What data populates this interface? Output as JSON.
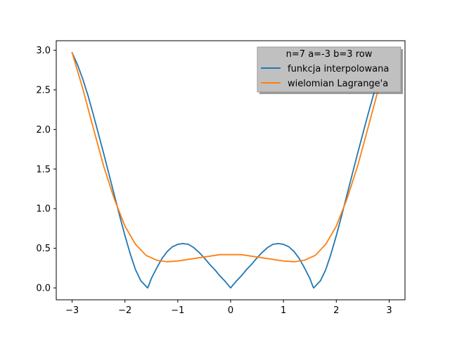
{
  "chart_data": {
    "type": "line",
    "title": "",
    "xlabel": "",
    "ylabel": "",
    "xlim": [
      -3.3,
      3.3
    ],
    "ylim": [
      -0.15,
      3.12
    ],
    "xticks": [
      -3,
      -2,
      -1,
      0,
      1,
      2,
      3
    ],
    "xtick_labels": [
      "−3",
      "−2",
      "−1",
      "0",
      "1",
      "2",
      "3"
    ],
    "yticks": [
      0.0,
      0.5,
      1.0,
      1.5,
      2.0,
      2.5,
      3.0
    ],
    "ytick_labels": [
      "0.0",
      "0.5",
      "1.0",
      "1.5",
      "2.0",
      "2.5",
      "3.0"
    ],
    "grid": false,
    "legend": {
      "title": "n=7 a=-3 b=3 row",
      "placement": "top-right",
      "background": "#c0c0c0"
    },
    "series": [
      {
        "name": "funkcja interpolowana",
        "color": "#1f77b4",
        "x": [
          -3.0,
          -2.9,
          -2.8,
          -2.7,
          -2.6,
          -2.5,
          -2.4,
          -2.3,
          -2.2,
          -2.1,
          -2.0,
          -1.9,
          -1.8,
          -1.7,
          -1.6,
          -1.571,
          -1.55,
          -1.5,
          -1.4,
          -1.3,
          -1.2,
          -1.1,
          -1.0,
          -0.9,
          -0.8,
          -0.7,
          -0.6,
          -0.5,
          -0.4,
          -0.3,
          -0.2,
          -0.1,
          0.0,
          0.1,
          0.2,
          0.3,
          0.4,
          0.5,
          0.6,
          0.7,
          0.8,
          0.9,
          1.0,
          1.1,
          1.2,
          1.3,
          1.4,
          1.5,
          1.55,
          1.571,
          1.6,
          1.7,
          1.8,
          1.9,
          2.0,
          2.1,
          2.2,
          2.3,
          2.4,
          2.5,
          2.6,
          2.7,
          2.8,
          2.9,
          3.0
        ],
        "y": [
          2.97,
          2.82,
          2.64,
          2.43,
          2.19,
          1.94,
          1.69,
          1.43,
          1.17,
          0.91,
          0.66,
          0.43,
          0.23,
          0.09,
          0.02,
          0.0,
          0.03,
          0.12,
          0.25,
          0.37,
          0.46,
          0.52,
          0.55,
          0.56,
          0.55,
          0.51,
          0.45,
          0.38,
          0.3,
          0.23,
          0.15,
          0.08,
          0.0,
          0.08,
          0.15,
          0.23,
          0.3,
          0.38,
          0.45,
          0.51,
          0.55,
          0.56,
          0.55,
          0.52,
          0.46,
          0.37,
          0.25,
          0.12,
          0.03,
          0.0,
          0.02,
          0.09,
          0.23,
          0.43,
          0.66,
          0.91,
          1.17,
          1.43,
          1.69,
          1.94,
          2.19,
          2.43,
          2.64,
          2.82,
          2.97
        ]
      },
      {
        "name": "wielomian Lagrange'a",
        "color": "#ff7f0e",
        "x": [
          -3.0,
          -2.8,
          -2.6,
          -2.4,
          -2.2,
          -2.0,
          -1.8,
          -1.6,
          -1.4,
          -1.2,
          -1.0,
          -0.8,
          -0.6,
          -0.4,
          -0.2,
          0.0,
          0.2,
          0.4,
          0.6,
          0.8,
          1.0,
          1.2,
          1.4,
          1.6,
          1.8,
          2.0,
          2.2,
          2.4,
          2.6,
          2.8,
          3.0
        ],
        "y": [
          2.97,
          2.52,
          2.02,
          1.53,
          1.12,
          0.78,
          0.55,
          0.41,
          0.35,
          0.33,
          0.34,
          0.36,
          0.38,
          0.4,
          0.42,
          0.42,
          0.42,
          0.4,
          0.38,
          0.36,
          0.34,
          0.33,
          0.35,
          0.41,
          0.55,
          0.78,
          1.12,
          1.53,
          2.02,
          2.52,
          2.97
        ]
      }
    ]
  }
}
